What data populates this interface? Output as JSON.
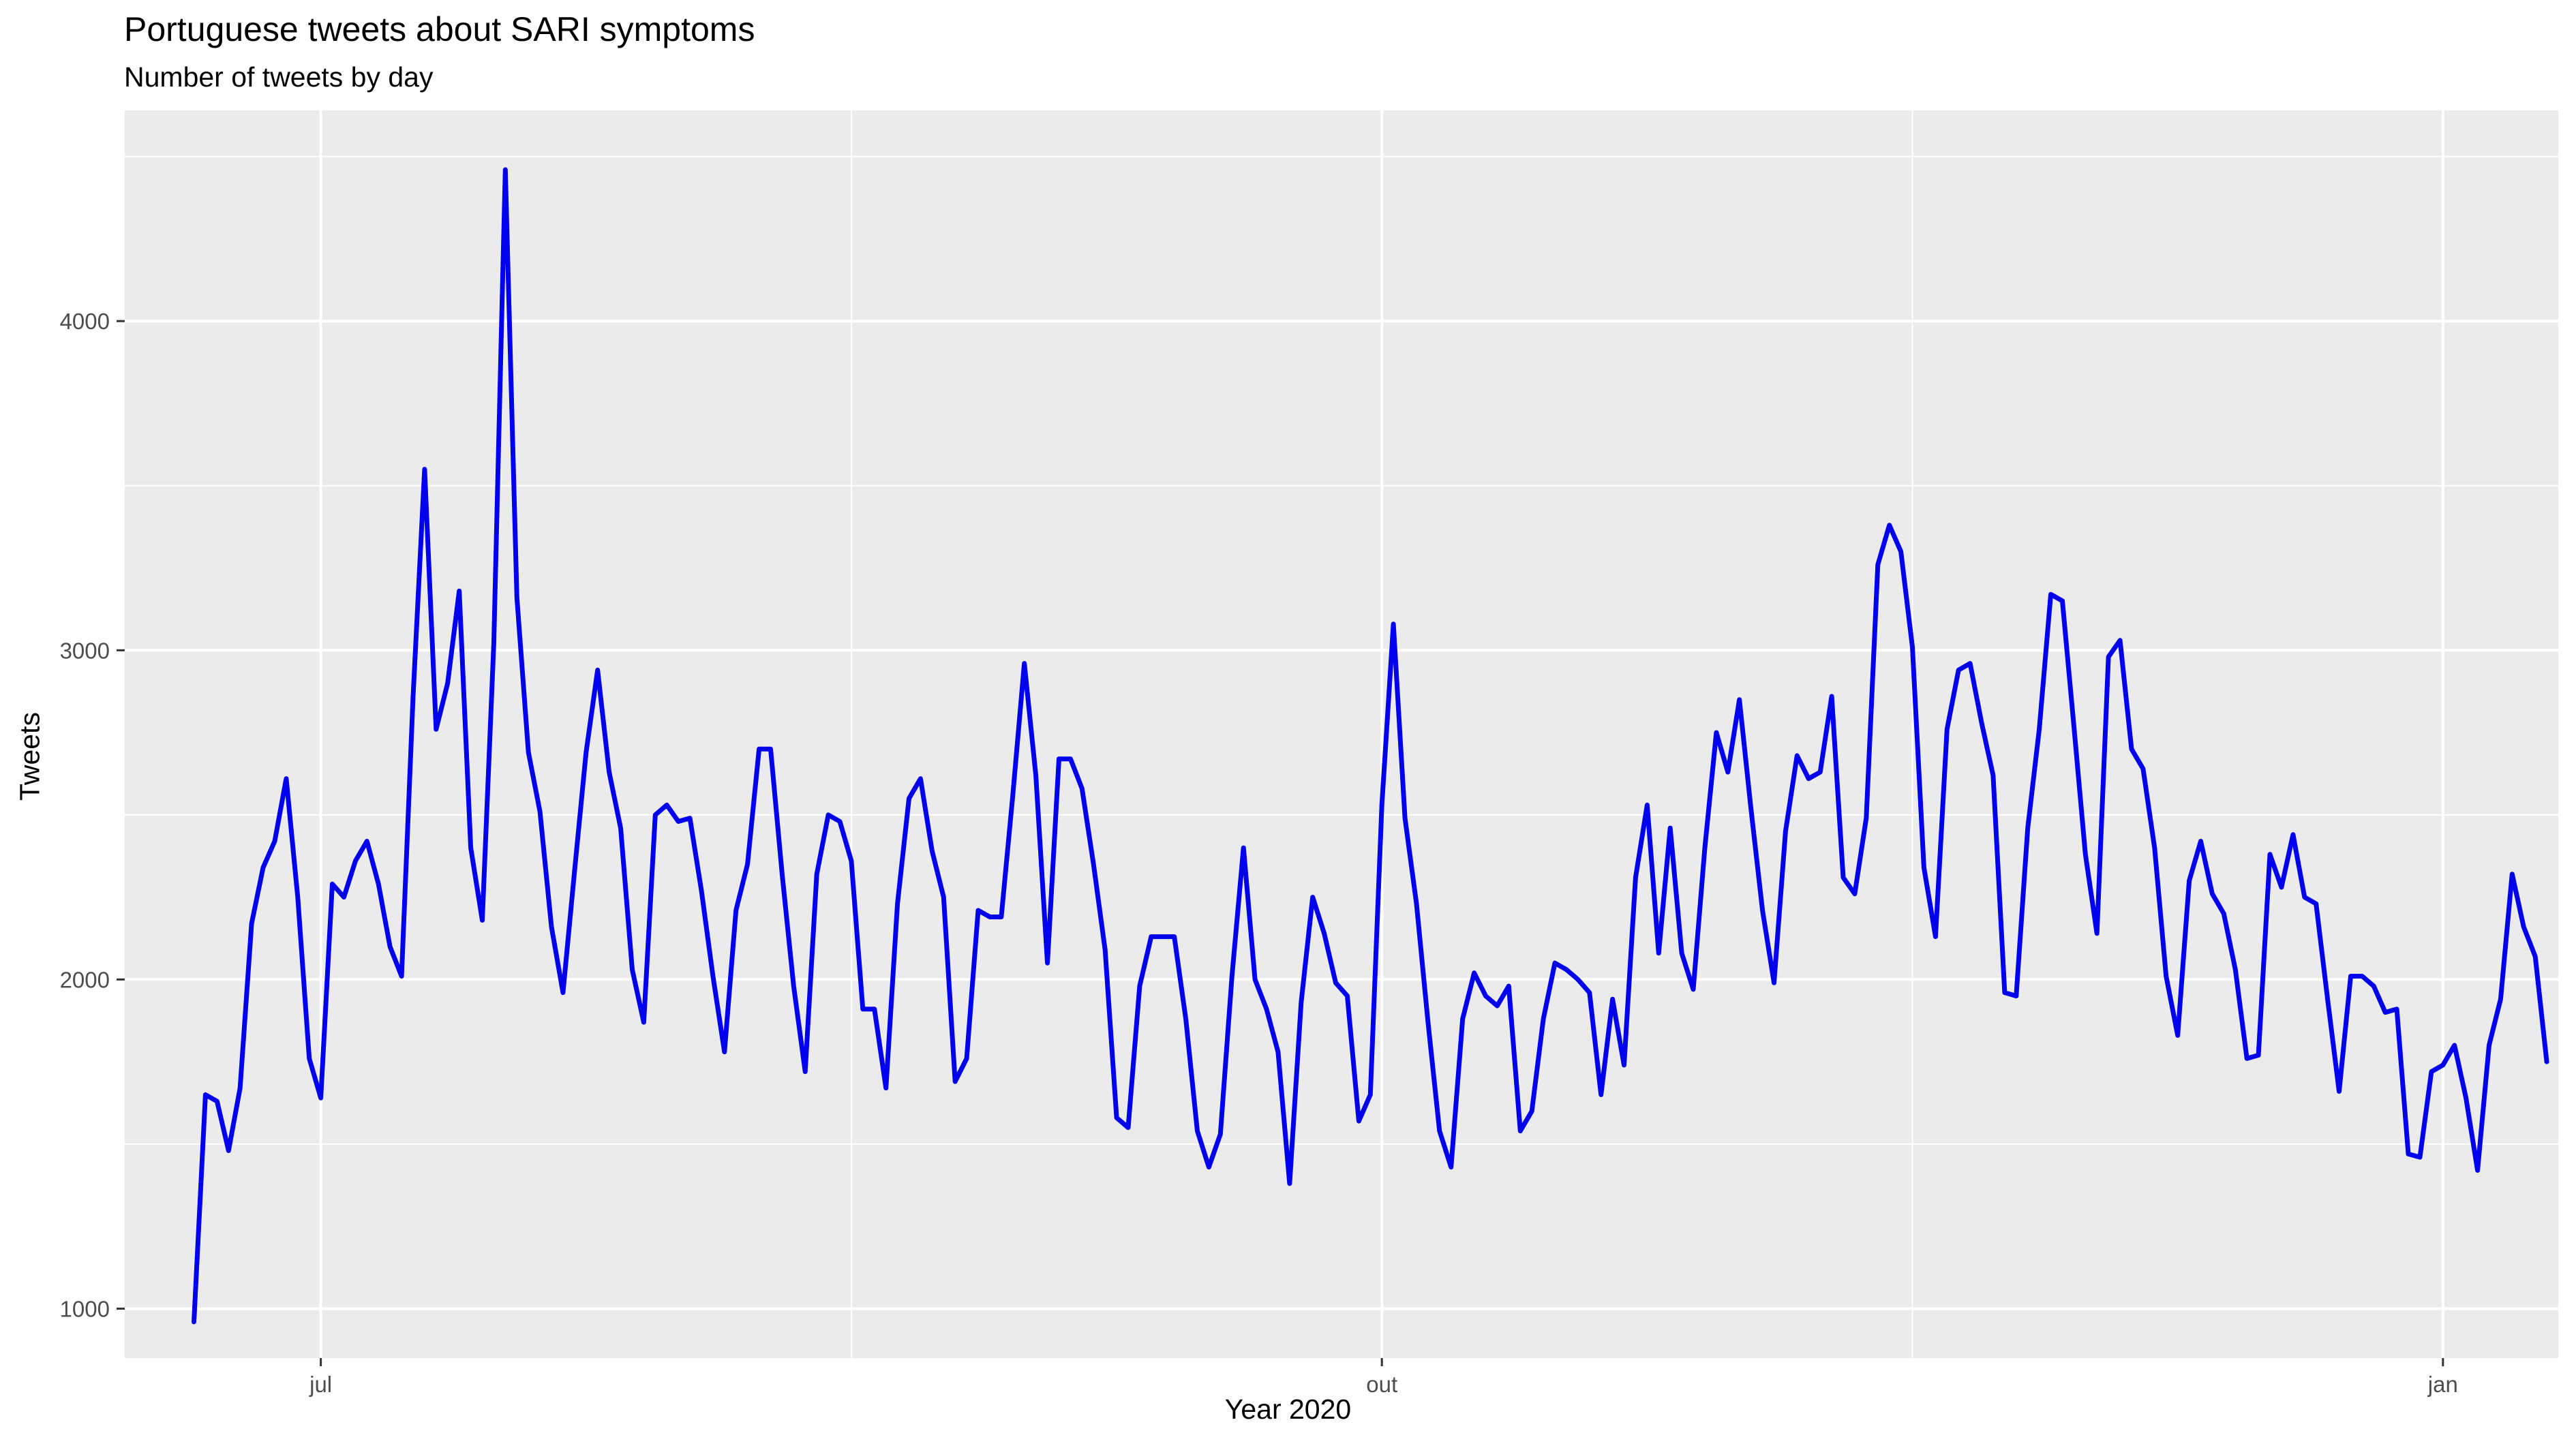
{
  "chart_data": {
    "type": "line",
    "title": "Portuguese tweets about SARI symptoms",
    "subtitle": "Number of tweets by day",
    "xlabel": "Year 2020",
    "ylabel": "Tweets",
    "x_start": "2020-06-20",
    "x_ticks": [
      {
        "date": "2020-07-01",
        "label": "jul"
      },
      {
        "date": "2020-10-01",
        "label": "out"
      },
      {
        "date": "2021-01-01",
        "label": "jan"
      }
    ],
    "y_ticks": [
      1000,
      2000,
      3000,
      4000
    ],
    "ylim": [
      850,
      4640
    ],
    "xlim": [
      "2020-06-14",
      "2021-01-11"
    ],
    "grid": true,
    "series": [
      {
        "color": "#0000ee",
        "values": [
          960,
          1650,
          1630,
          1480,
          1670,
          2170,
          2340,
          2420,
          2610,
          2250,
          1760,
          1640,
          2290,
          2250,
          2360,
          2420,
          2290,
          2100,
          2010,
          2860,
          3550,
          2760,
          2900,
          3180,
          2400,
          2180,
          3020,
          4460,
          3160,
          2690,
          2510,
          2160,
          1960,
          2330,
          2690,
          2940,
          2630,
          2460,
          2030,
          1870,
          2500,
          2530,
          2480,
          2490,
          2270,
          2010,
          1780,
          2210,
          2350,
          2700,
          2700,
          2320,
          1980,
          1720,
          2320,
          2500,
          2480,
          2360,
          1910,
          1910,
          1670,
          2230,
          2550,
          2610,
          2390,
          2250,
          1690,
          1760,
          2210,
          2190,
          2190,
          2560,
          2960,
          2620,
          2050,
          2670,
          2670,
          2580,
          2350,
          2090,
          1580,
          1550,
          1980,
          2130,
          2130,
          2130,
          1880,
          1540,
          1430,
          1530,
          2010,
          2400,
          2000,
          1910,
          1780,
          1380,
          1930,
          2250,
          2140,
          1990,
          1950,
          1570,
          1650,
          2530,
          3080,
          2490,
          2230,
          1870,
          1540,
          1430,
          1880,
          2020,
          1950,
          1920,
          1980,
          1540,
          1600,
          1880,
          2050,
          2030,
          2000,
          1960,
          1650,
          1940,
          1740,
          2310,
          2530,
          2080,
          2460,
          2080,
          1970,
          2400,
          2750,
          2630,
          2850,
          2520,
          2210,
          1990,
          2450,
          2680,
          2610,
          2630,
          2860,
          2310,
          2260,
          2490,
          3260,
          3380,
          3300,
          3010,
          2340,
          2130,
          2760,
          2940,
          2960,
          2780,
          2620,
          1960,
          1950,
          2460,
          2760,
          3170,
          3150,
          2770,
          2380,
          2140,
          2980,
          3030,
          2700,
          2640,
          2400,
          2010,
          1830,
          2300,
          2420,
          2260,
          2200,
          2030,
          1760,
          1770,
          2380,
          2280,
          2440,
          2250,
          2230,
          1940,
          1660,
          2010,
          2010,
          1980,
          1900,
          1910,
          1470,
          1460,
          1720,
          1740,
          1800,
          1640,
          1420,
          1800,
          1940,
          2320,
          2160,
          2070,
          1750
        ]
      }
    ]
  }
}
